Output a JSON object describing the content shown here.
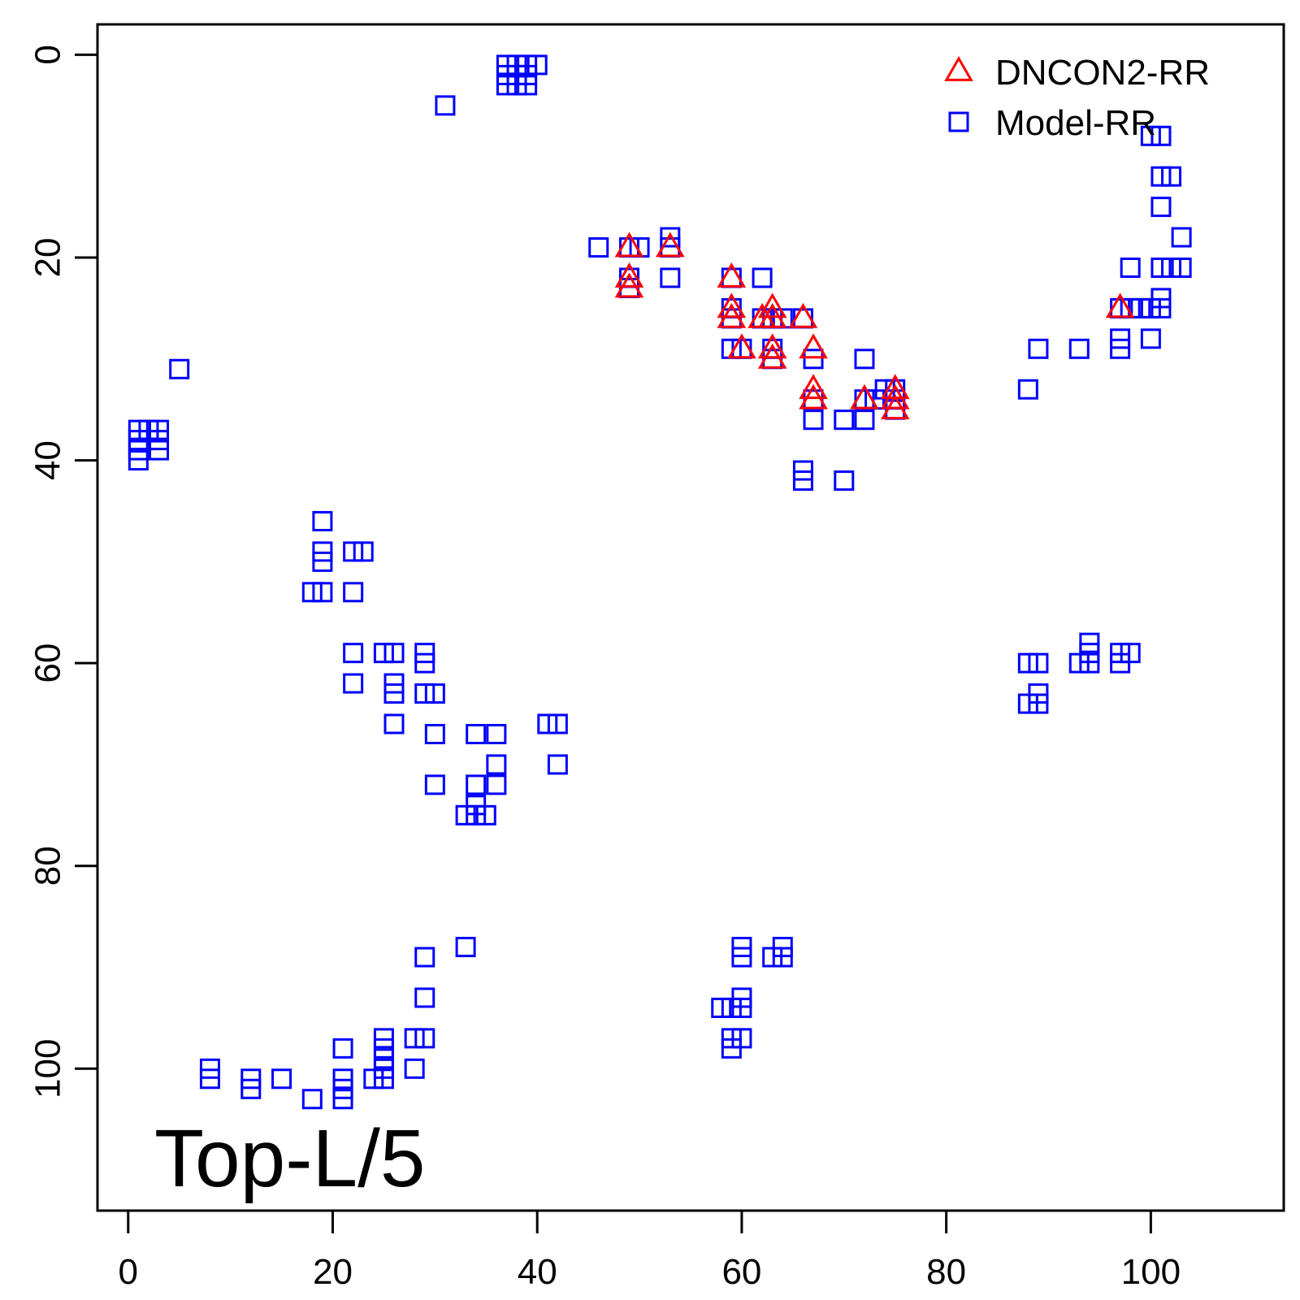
{
  "chart_data": {
    "type": "scatter",
    "title": "",
    "xlabel": "",
    "ylabel": "",
    "xlim": [
      -3,
      113
    ],
    "ylim": [
      114,
      -3
    ],
    "y_reversed": true,
    "x_ticks": [
      0,
      20,
      40,
      60,
      80,
      100
    ],
    "y_ticks": [
      0,
      20,
      40,
      60,
      80,
      100
    ],
    "grid": false,
    "legend_position": "top-right",
    "annotation": "Top-L/5",
    "series": [
      {
        "name": "DNCON2-RR",
        "marker": "triangle",
        "color": "#ff0000",
        "points": [
          [
            49,
            19
          ],
          [
            49,
            22
          ],
          [
            49,
            23
          ],
          [
            53,
            19
          ],
          [
            59,
            22
          ],
          [
            59,
            25
          ],
          [
            59,
            26
          ],
          [
            60,
            29
          ],
          [
            62,
            26
          ],
          [
            63,
            25
          ],
          [
            63,
            26
          ],
          [
            63,
            29
          ],
          [
            63,
            30
          ],
          [
            66,
            26
          ],
          [
            67,
            29
          ],
          [
            67,
            33
          ],
          [
            67,
            34
          ],
          [
            72,
            34
          ],
          [
            75,
            33
          ],
          [
            75,
            34
          ],
          [
            75,
            35
          ],
          [
            97,
            25
          ]
        ]
      },
      {
        "name": "Model-RR",
        "marker": "square",
        "color": "#0000ff",
        "points": [
          [
            37,
            1
          ],
          [
            38,
            1
          ],
          [
            39,
            1
          ],
          [
            40,
            1
          ],
          [
            37,
            2
          ],
          [
            38,
            2
          ],
          [
            39,
            2
          ],
          [
            37,
            3
          ],
          [
            38,
            3
          ],
          [
            39,
            3
          ],
          [
            31,
            5
          ],
          [
            5,
            31
          ],
          [
            1,
            37
          ],
          [
            2,
            37
          ],
          [
            3,
            37
          ],
          [
            1,
            38
          ],
          [
            3,
            38
          ],
          [
            1,
            39
          ],
          [
            3,
            39
          ],
          [
            1,
            40
          ],
          [
            19,
            46
          ],
          [
            19,
            49
          ],
          [
            19,
            50
          ],
          [
            22,
            49
          ],
          [
            23,
            49
          ],
          [
            18,
            53
          ],
          [
            19,
            53
          ],
          [
            22,
            53
          ],
          [
            22,
            59
          ],
          [
            25,
            59
          ],
          [
            26,
            59
          ],
          [
            29,
            59
          ],
          [
            29,
            60
          ],
          [
            22,
            62
          ],
          [
            26,
            62
          ],
          [
            26,
            63
          ],
          [
            29,
            63
          ],
          [
            30,
            63
          ],
          [
            26,
            66
          ],
          [
            30,
            67
          ],
          [
            34,
            67
          ],
          [
            36,
            67
          ],
          [
            36,
            70
          ],
          [
            30,
            72
          ],
          [
            34,
            72
          ],
          [
            36,
            72
          ],
          [
            34,
            74
          ],
          [
            33,
            75
          ],
          [
            34,
            75
          ],
          [
            35,
            75
          ],
          [
            41,
            66
          ],
          [
            42,
            66
          ],
          [
            42,
            70
          ],
          [
            33,
            88
          ],
          [
            29,
            89
          ],
          [
            29,
            93
          ],
          [
            28,
            97
          ],
          [
            29,
            97
          ],
          [
            21,
            98
          ],
          [
            25,
            97
          ],
          [
            25,
            98
          ],
          [
            25,
            99
          ],
          [
            28,
            100
          ],
          [
            8,
            100
          ],
          [
            8,
            101
          ],
          [
            12,
            101
          ],
          [
            12,
            102
          ],
          [
            15,
            101
          ],
          [
            18,
            103
          ],
          [
            21,
            101
          ],
          [
            21,
            102
          ],
          [
            21,
            103
          ],
          [
            24,
            101
          ],
          [
            25,
            100
          ],
          [
            25,
            101
          ],
          [
            46,
            19
          ],
          [
            49,
            19
          ],
          [
            50,
            19
          ],
          [
            53,
            18
          ],
          [
            53,
            19
          ],
          [
            53,
            22
          ],
          [
            49,
            22
          ],
          [
            49,
            23
          ],
          [
            59,
            22
          ],
          [
            62,
            22
          ],
          [
            59,
            25
          ],
          [
            59,
            26
          ],
          [
            62,
            26
          ],
          [
            63,
            26
          ],
          [
            64,
            26
          ],
          [
            66,
            26
          ],
          [
            59,
            29
          ],
          [
            60,
            29
          ],
          [
            63,
            29
          ],
          [
            63,
            30
          ],
          [
            67,
            30
          ],
          [
            72,
            30
          ],
          [
            67,
            34
          ],
          [
            67,
            36
          ],
          [
            70,
            36
          ],
          [
            72,
            34
          ],
          [
            72,
            36
          ],
          [
            73,
            34
          ],
          [
            74,
            33
          ],
          [
            75,
            33
          ],
          [
            75,
            34
          ],
          [
            75,
            35
          ],
          [
            66,
            41
          ],
          [
            66,
            42
          ],
          [
            70,
            42
          ],
          [
            88,
            33
          ],
          [
            89,
            29
          ],
          [
            93,
            29
          ],
          [
            97,
            28
          ],
          [
            97,
            29
          ],
          [
            97,
            25
          ],
          [
            98,
            21
          ],
          [
            98,
            25
          ],
          [
            99,
            25
          ],
          [
            100,
            25
          ],
          [
            101,
            25
          ],
          [
            101,
            24
          ],
          [
            100,
            28
          ],
          [
            100,
            8
          ],
          [
            101,
            8
          ],
          [
            101,
            12
          ],
          [
            102,
            12
          ],
          [
            101,
            15
          ],
          [
            101,
            21
          ],
          [
            102,
            21
          ],
          [
            103,
            21
          ],
          [
            103,
            18
          ],
          [
            88,
            60
          ],
          [
            89,
            60
          ],
          [
            89,
            63
          ],
          [
            88,
            64
          ],
          [
            89,
            64
          ],
          [
            93,
            60
          ],
          [
            94,
            60
          ],
          [
            94,
            59
          ],
          [
            94,
            58
          ],
          [
            97,
            59
          ],
          [
            98,
            59
          ],
          [
            97,
            60
          ],
          [
            60,
            88
          ],
          [
            60,
            89
          ],
          [
            63,
            89
          ],
          [
            64,
            88
          ],
          [
            64,
            89
          ],
          [
            58,
            94
          ],
          [
            59,
            94
          ],
          [
            60,
            94
          ],
          [
            60,
            93
          ],
          [
            59,
            97
          ],
          [
            60,
            97
          ],
          [
            59,
            98
          ]
        ]
      }
    ]
  }
}
